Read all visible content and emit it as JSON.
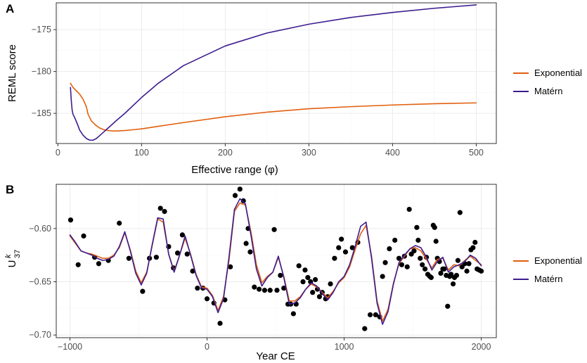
{
  "chart_data": [
    {
      "tag": "A",
      "type": "line",
      "xlabel": "Effective range",
      "xlabel_symbol": "(φ)",
      "ylabel": "REML score",
      "xlim": [
        -2,
        524
      ],
      "ylim": [
        -188.6,
        -171.8
      ],
      "x_ticks": [
        0,
        100,
        200,
        300,
        400,
        500
      ],
      "x_tick_labels": [
        "0",
        "100",
        "200",
        "300",
        "400",
        "500"
      ],
      "y_ticks": [
        -175,
        -180,
        -185
      ],
      "y_tick_labels": [
        "-175",
        "-180",
        "-185"
      ],
      "series": [
        {
          "name": "Exponential",
          "color": "#e15f0e",
          "x": [
            15,
            18,
            22,
            26,
            30,
            34,
            36,
            40,
            45,
            50,
            55,
            60,
            65,
            70,
            80,
            90,
            100,
            120,
            150,
            200,
            250,
            300,
            350,
            400,
            450,
            500
          ],
          "y": [
            -181.4,
            -181.9,
            -182.3,
            -182.7,
            -183.3,
            -184.2,
            -185.1,
            -185.9,
            -186.4,
            -186.75,
            -186.95,
            -187.05,
            -187.1,
            -187.1,
            -187.05,
            -186.95,
            -186.85,
            -186.55,
            -186.1,
            -185.4,
            -184.85,
            -184.45,
            -184.2,
            -184.0,
            -183.85,
            -183.75
          ]
        },
        {
          "name": "Matérn",
          "color": "#3d1c8f",
          "x": [
            15,
            16,
            17,
            18,
            20,
            23,
            26,
            30,
            34,
            38,
            42,
            46,
            50,
            55,
            60,
            70,
            80,
            100,
            120,
            150,
            200,
            250,
            300,
            350,
            400,
            450,
            500
          ],
          "y": [
            -181.9,
            -183.5,
            -184.6,
            -185.1,
            -185.5,
            -186.2,
            -187.0,
            -187.6,
            -188.0,
            -188.2,
            -188.2,
            -188.0,
            -187.65,
            -187.2,
            -186.75,
            -185.85,
            -185.0,
            -183.1,
            -181.4,
            -179.3,
            -176.95,
            -175.4,
            -174.35,
            -173.55,
            -172.95,
            -172.45,
            -172.05
          ]
        }
      ],
      "legend": [
        "Exponential",
        "Matérn"
      ],
      "legend_position": "right"
    },
    {
      "tag": "B",
      "type": "scatter+line",
      "xlabel": "Year CE",
      "ylabel_main": "U",
      "ylabel_super": "k",
      "ylabel_sub": "37",
      "xlim": [
        -1100,
        2110
      ],
      "ylim": [
        -0.7025,
        -0.5585
      ],
      "x_ticks": [
        -1000,
        0,
        1000,
        2000
      ],
      "x_tick_labels": [
        "-1000",
        "0",
        "1000",
        "2000"
      ],
      "y_ticks": [
        -0.6,
        -0.65,
        -0.7
      ],
      "y_tick_labels": [
        "-0.60",
        "-0.65",
        "-0.70"
      ],
      "points": {
        "x": [
          -995,
          -940,
          -900,
          -820,
          -790,
          -720,
          -640,
          -570,
          -470,
          -420,
          -370,
          -340,
          -310,
          -280,
          -245,
          -215,
          -180,
          -145,
          -105,
          -70,
          -30,
          0,
          50,
          95,
          130,
          170,
          205,
          240,
          265,
          285,
          300,
          315,
          345,
          380,
          420,
          460,
          490,
          510,
          535,
          560,
          590,
          610,
          630,
          650,
          670,
          700,
          715,
          735,
          755,
          770,
          790,
          805,
          820,
          840,
          865,
          880,
          900,
          930,
          960,
          980,
          1010,
          1060,
          1100,
          1150,
          1190,
          1230,
          1260,
          1280,
          1300,
          1330,
          1370,
          1400,
          1420,
          1440,
          1460,
          1475,
          1490,
          1510,
          1530,
          1540,
          1555,
          1570,
          1590,
          1600,
          1610,
          1625,
          1635,
          1650,
          1660,
          1670,
          1680,
          1695,
          1705,
          1720,
          1730,
          1745,
          1755,
          1770,
          1780,
          1795,
          1805,
          1820,
          1830,
          1845,
          1860,
          1880,
          1895,
          1910,
          1925,
          1940,
          1955,
          1970,
          1985,
          2000
        ],
        "y": [
          -0.592,
          -0.634,
          -0.607,
          -0.627,
          -0.633,
          -0.63,
          -0.595,
          -0.628,
          -0.659,
          -0.628,
          -0.627,
          -0.581,
          -0.584,
          -0.617,
          -0.637,
          -0.623,
          -0.606,
          -0.624,
          -0.64,
          -0.656,
          -0.656,
          -0.666,
          -0.67,
          -0.689,
          -0.667,
          -0.636,
          -0.569,
          -0.563,
          -0.574,
          -0.614,
          -0.6,
          -0.622,
          -0.655,
          -0.657,
          -0.658,
          -0.658,
          -0.601,
          -0.658,
          -0.644,
          -0.656,
          -0.671,
          -0.671,
          -0.68,
          -0.671,
          -0.635,
          -0.65,
          -0.639,
          -0.646,
          -0.65,
          -0.66,
          -0.648,
          -0.657,
          -0.664,
          -0.66,
          -0.666,
          -0.664,
          -0.652,
          -0.628,
          -0.618,
          -0.61,
          -0.622,
          -0.618,
          -0.613,
          -0.694,
          -0.681,
          -0.681,
          -0.683,
          -0.645,
          -0.632,
          -0.619,
          -0.611,
          -0.628,
          -0.634,
          -0.626,
          -0.636,
          -0.582,
          -0.624,
          -0.621,
          -0.599,
          -0.611,
          -0.628,
          -0.634,
          -0.638,
          -0.627,
          -0.643,
          -0.645,
          -0.646,
          -0.597,
          -0.599,
          -0.612,
          -0.628,
          -0.631,
          -0.642,
          -0.638,
          -0.638,
          -0.644,
          -0.673,
          -0.645,
          -0.643,
          -0.652,
          -0.646,
          -0.644,
          -0.63,
          -0.585,
          -0.636,
          -0.633,
          -0.64,
          -0.633,
          -0.62,
          -0.618,
          -0.613,
          -0.638,
          -0.639,
          -0.64
        ]
      },
      "series": [
        {
          "name": "Exponential",
          "color": "#e15f0e",
          "x": [
            -1000,
            -960,
            -920,
            -880,
            -840,
            -800,
            -760,
            -720,
            -680,
            -640,
            -600,
            -560,
            -520,
            -480,
            -440,
            -400,
            -360,
            -320,
            -280,
            -240,
            -200,
            -160,
            -120,
            -80,
            -40,
            0,
            40,
            80,
            120,
            160,
            200,
            240,
            280,
            320,
            360,
            400,
            440,
            480,
            520,
            560,
            600,
            640,
            680,
            720,
            760,
            800,
            840,
            880,
            920,
            960,
            1000,
            1040,
            1080,
            1120,
            1160,
            1200,
            1240,
            1280,
            1320,
            1360,
            1400,
            1440,
            1480,
            1520,
            1560,
            1600,
            1640,
            1680,
            1720,
            1760,
            1800,
            1840,
            1880,
            1920,
            1960,
            2000
          ],
          "y": [
            -0.607,
            -0.614,
            -0.621,
            -0.623,
            -0.624,
            -0.626,
            -0.628,
            -0.628,
            -0.625,
            -0.618,
            -0.604,
            -0.62,
            -0.64,
            -0.651,
            -0.641,
            -0.616,
            -0.591,
            -0.594,
            -0.624,
            -0.64,
            -0.625,
            -0.609,
            -0.624,
            -0.643,
            -0.655,
            -0.656,
            -0.663,
            -0.677,
            -0.664,
            -0.63,
            -0.584,
            -0.576,
            -0.578,
            -0.603,
            -0.634,
            -0.651,
            -0.645,
            -0.641,
            -0.627,
            -0.645,
            -0.668,
            -0.668,
            -0.664,
            -0.657,
            -0.652,
            -0.655,
            -0.66,
            -0.665,
            -0.659,
            -0.651,
            -0.646,
            -0.636,
            -0.62,
            -0.605,
            -0.597,
            -0.626,
            -0.668,
            -0.687,
            -0.676,
            -0.651,
            -0.633,
            -0.626,
            -0.619,
            -0.618,
            -0.621,
            -0.629,
            -0.637,
            -0.629,
            -0.628,
            -0.639,
            -0.634,
            -0.635,
            -0.63,
            -0.626,
            -0.63,
            -0.634
          ]
        },
        {
          "name": "Matérn",
          "color": "#3d1c8f",
          "x": [
            -1000,
            -960,
            -920,
            -880,
            -840,
            -800,
            -760,
            -720,
            -680,
            -640,
            -600,
            -560,
            -520,
            -480,
            -440,
            -400,
            -360,
            -320,
            -280,
            -240,
            -200,
            -160,
            -120,
            -80,
            -40,
            0,
            40,
            80,
            120,
            160,
            200,
            240,
            280,
            320,
            360,
            400,
            440,
            480,
            520,
            560,
            600,
            640,
            680,
            720,
            760,
            800,
            840,
            880,
            920,
            960,
            1000,
            1040,
            1080,
            1120,
            1160,
            1200,
            1240,
            1280,
            1320,
            1360,
            1400,
            1440,
            1480,
            1520,
            1560,
            1600,
            1640,
            1680,
            1720,
            1760,
            1800,
            1840,
            1880,
            1920,
            1960,
            2000
          ],
          "y": [
            -0.606,
            -0.613,
            -0.621,
            -0.623,
            -0.625,
            -0.628,
            -0.63,
            -0.629,
            -0.626,
            -0.617,
            -0.603,
            -0.621,
            -0.642,
            -0.653,
            -0.642,
            -0.615,
            -0.59,
            -0.591,
            -0.624,
            -0.641,
            -0.625,
            -0.607,
            -0.625,
            -0.644,
            -0.656,
            -0.657,
            -0.664,
            -0.679,
            -0.666,
            -0.627,
            -0.582,
            -0.572,
            -0.577,
            -0.606,
            -0.638,
            -0.654,
            -0.646,
            -0.641,
            -0.626,
            -0.646,
            -0.671,
            -0.67,
            -0.665,
            -0.657,
            -0.651,
            -0.654,
            -0.661,
            -0.667,
            -0.66,
            -0.65,
            -0.645,
            -0.634,
            -0.617,
            -0.598,
            -0.594,
            -0.628,
            -0.67,
            -0.69,
            -0.678,
            -0.652,
            -0.632,
            -0.625,
            -0.619,
            -0.616,
            -0.618,
            -0.627,
            -0.639,
            -0.631,
            -0.627,
            -0.641,
            -0.636,
            -0.634,
            -0.631,
            -0.625,
            -0.628,
            -0.635
          ]
        }
      ],
      "legend": [
        "Exponential",
        "Matérn"
      ],
      "legend_position": "right"
    }
  ]
}
